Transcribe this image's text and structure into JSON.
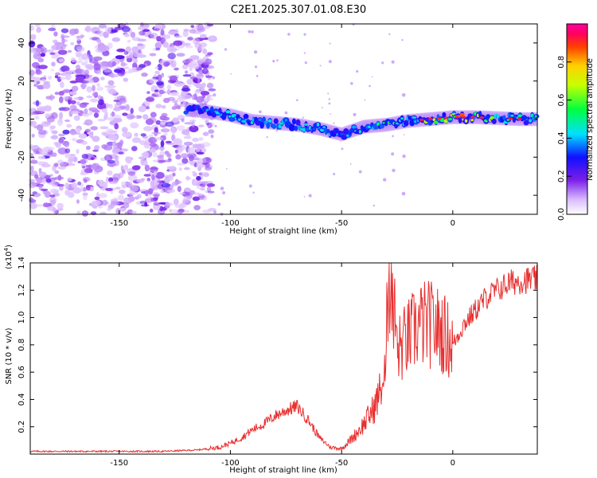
{
  "title": "C2E1.2025.307.01.08.E30",
  "chart_data": [
    {
      "type": "heatmap",
      "xlabel": "Height of straight line (km)",
      "ylabel": "Frequency (Hz)",
      "xlim": [
        -190,
        38
      ],
      "ylim": [
        -50,
        50
      ],
      "x_ticks": [
        -150,
        -100,
        -50,
        0
      ],
      "y_ticks": [
        -40,
        -20,
        0,
        20,
        40
      ],
      "colorbar": {
        "label": "Normalized spectral amplitude",
        "range": [
          0.0,
          1.0
        ],
        "ticks": [
          0.0,
          0.2,
          0.4,
          0.6,
          0.8
        ]
      },
      "ridge": {
        "x": [
          -120,
          -110,
          -100,
          -90,
          -80,
          -70,
          -60,
          -50,
          -40,
          -30,
          -20,
          -10,
          0,
          10,
          20,
          30,
          38
        ],
        "freq": [
          5,
          4,
          2,
          -1,
          -2,
          -3,
          -5,
          -8,
          -4,
          -3,
          -1,
          0,
          1,
          1,
          0.5,
          0,
          0
        ],
        "amplitude": [
          0.35,
          0.4,
          0.45,
          0.5,
          0.45,
          0.5,
          0.45,
          0.4,
          0.5,
          0.55,
          0.6,
          0.75,
          0.9,
          0.85,
          0.7,
          0.55,
          0.5
        ]
      }
    },
    {
      "type": "line",
      "xlabel": "Height of straight line (km)",
      "ylabel": "SNR (10 * v/v)",
      "y_scale_label": "(x10",
      "y_scale_exponent": "4",
      "y_scale_suffix": ")",
      "xlim": [
        -190,
        38
      ],
      "ylim": [
        0,
        1.4
      ],
      "x_ticks": [
        -150,
        -100,
        -50,
        0
      ],
      "y_ticks": [
        0.2,
        0.4,
        0.6,
        0.8,
        1.0,
        1.2,
        1.4
      ],
      "series": [
        {
          "name": "SNR",
          "color": "#e83030",
          "x": [
            -190,
            -170,
            -150,
            -130,
            -115,
            -105,
            -100,
            -95,
            -90,
            -85,
            -80,
            -75,
            -70,
            -65,
            -60,
            -55,
            -50,
            -45,
            -40,
            -35,
            -30,
            -28,
            -25,
            -20,
            -15,
            -10,
            -5,
            0,
            5,
            10,
            15,
            20,
            25,
            30,
            38
          ],
          "values": [
            0.02,
            0.02,
            0.02,
            0.02,
            0.03,
            0.05,
            0.08,
            0.12,
            0.18,
            0.22,
            0.28,
            0.32,
            0.35,
            0.25,
            0.12,
            0.05,
            0.04,
            0.12,
            0.22,
            0.35,
            0.6,
            1.45,
            0.75,
            0.85,
            0.95,
            0.95,
            0.9,
            0.8,
            0.95,
            1.05,
            1.15,
            1.2,
            1.25,
            1.27,
            1.28
          ]
        }
      ]
    }
  ]
}
